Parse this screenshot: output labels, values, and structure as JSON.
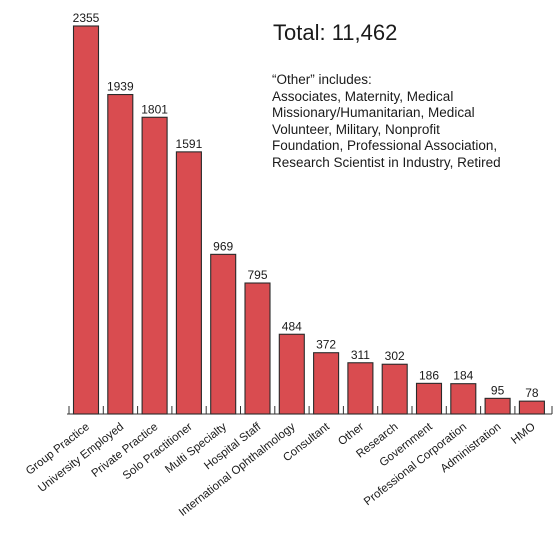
{
  "chart_data": {
    "type": "bar",
    "categories": [
      "Group Practice",
      "University Employed",
      "Private Practice",
      "Solo Practitioner",
      "Multi Specialty",
      "Hospital Staff",
      "International Ophthalmology",
      "Consultant",
      "Other",
      "Research",
      "Government",
      "Professional Corporation",
      "Administration",
      "HMO"
    ],
    "values": [
      2355,
      1939,
      1801,
      1591,
      969,
      795,
      484,
      372,
      311,
      302,
      186,
      184,
      95,
      78
    ],
    "data_labels": [
      "2355",
      "1939",
      "1801",
      "1591",
      "969",
      "795",
      "484",
      "372",
      "311",
      "302",
      "186",
      "184",
      "95",
      "78"
    ],
    "title": "",
    "xlabel": "",
    "ylabel": "",
    "ylim": [
      0,
      2355
    ],
    "grid": false,
    "bar_color": "#d94c50",
    "bar_stroke": "#2a2a2a"
  },
  "annotations": {
    "total": "Total: 11,462",
    "note_lines": [
      "“Other” includes:",
      "Associates, Maternity, Medical",
      "Missionary/Humanitarian, Medical",
      "Volunteer, Military, Nonprofit",
      "Foundation, Professional Association,",
      "Research Scientist in Industry, Retired"
    ]
  }
}
